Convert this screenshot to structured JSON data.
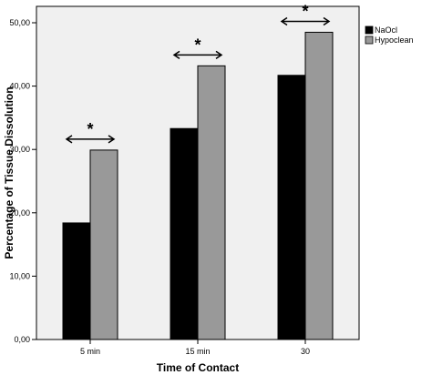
{
  "chart_data": {
    "type": "bar",
    "categories": [
      "5 min",
      "15 min",
      "30"
    ],
    "series": [
      {
        "name": "NaOcl",
        "values": [
          18.4,
          33.3,
          41.7
        ],
        "color": "#000000"
      },
      {
        "name": "Hypoclean",
        "values": [
          29.9,
          43.2,
          48.5
        ],
        "color": "#999999"
      }
    ],
    "xlabel": "Time of Contact",
    "ylabel": "Percentage of Tissue Dissolution",
    "ylim": [
      0,
      50
    ],
    "yticks": [
      "0,00",
      "10,00",
      "20,00",
      "30,00",
      "40,00",
      "50,00"
    ],
    "legend_position": "top-right",
    "annotations": [
      "*",
      "*",
      "*"
    ],
    "plot_background": "#f0f0f0"
  }
}
